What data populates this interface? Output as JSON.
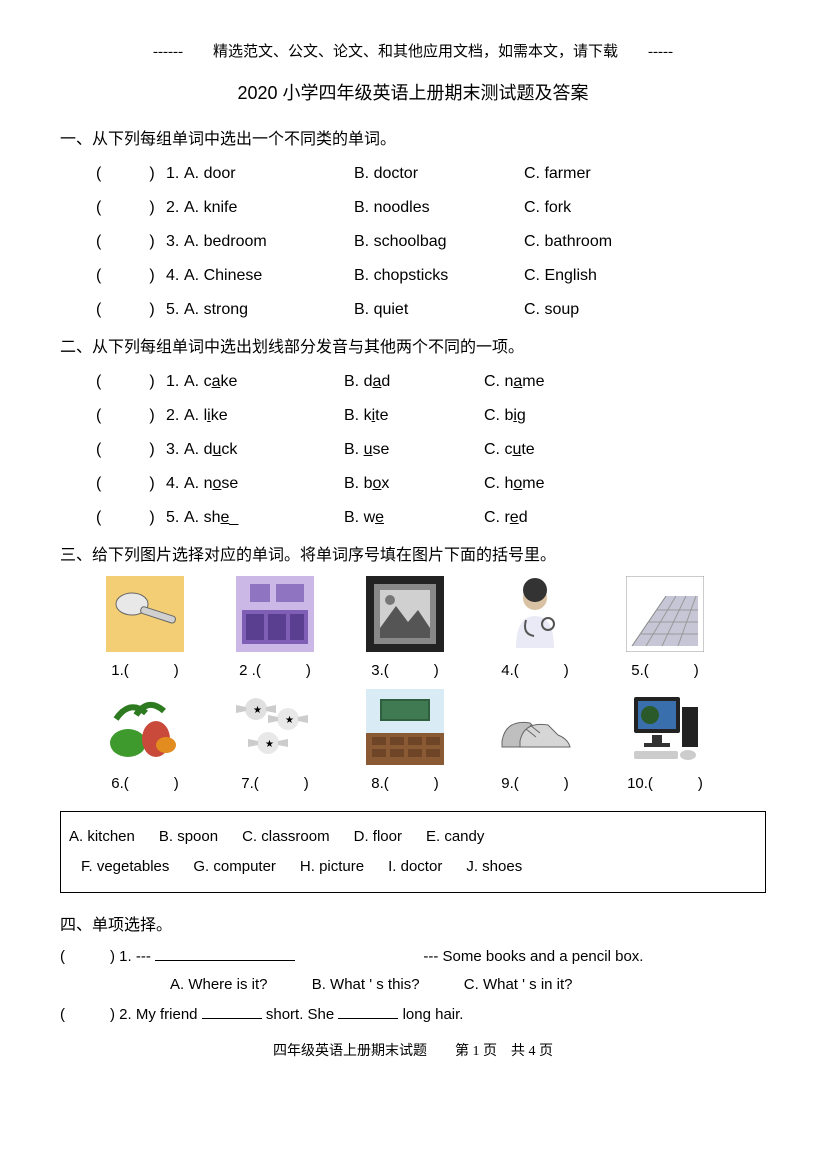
{
  "header": "------　　精选范文、公文、论文、和其他应用文档，如需本文，请下载　　-----",
  "title": "2020 小学四年级英语上册期末测试题及答案",
  "footer": "四年级英语上册期末试题　　第 1 页　共 4 页",
  "s1": {
    "head": "一、从下列每组单词中选出一个不同类的单词。",
    "items": [
      {
        "n": "1.",
        "a": "A. door",
        "b": "B. doctor",
        "c": "C. farmer"
      },
      {
        "n": "2.",
        "a": "A. knife",
        "b": "B. noodles",
        "c": "C. fork"
      },
      {
        "n": "3.",
        "a": "A. bedroom",
        "b": "B. schoolbag",
        "c": "C. bathroom"
      },
      {
        "n": "4.",
        "a": "A. Chinese",
        "b": "B. chopsticks",
        "c": "C. English"
      },
      {
        "n": "5.",
        "a": "A. strong",
        "b": "B. quiet",
        "c": "C. soup"
      }
    ]
  },
  "s2": {
    "head": "二、从下列每组单词中选出划线部分发音与其他两个不同的一项。"
  },
  "s3": {
    "head": "三、给下列图片选择对应的单词。将单词序号填在图片下面的括号里。",
    "row1": [
      {
        "n": "1.",
        "svg": "spoon",
        "bg": "#f3ce74"
      },
      {
        "n": "2 .",
        "svg": "kitchen",
        "bg": "#b9a3d6"
      },
      {
        "n": "3.",
        "svg": "picture",
        "bg": "#555"
      },
      {
        "n": "4.",
        "svg": "doctor",
        "bg": "#fff"
      },
      {
        "n": "5.",
        "svg": "floor",
        "bg": "#b8b8c8"
      }
    ],
    "row2": [
      {
        "n": "6.",
        "svg": "veg",
        "bg": "#3a8a2a"
      },
      {
        "n": "7.",
        "svg": "candy",
        "bg": "#ddd"
      },
      {
        "n": "8.",
        "svg": "classroom",
        "bg": "#6fa2c7"
      },
      {
        "n": "9.",
        "svg": "shoes",
        "bg": "#999"
      },
      {
        "n": "10.",
        "svg": "computer",
        "bg": "#333"
      }
    ],
    "box": [
      "A. kitchen",
      "B. spoon",
      "C. classroom",
      "D. floor",
      "E. candy",
      "F. vegetables",
      "G. computer",
      "H. picture",
      "I. doctor",
      "J. shoes"
    ]
  },
  "s4": {
    "head": "四、单项选择。",
    "q1_right": "--- Some books and a pencil box.",
    "q1_opts": {
      "a": "A. Where is it?",
      "b": "B. What ' s this?",
      "c": "C. What ' s in it?"
    },
    "q2_pre": ") 2. My friend ",
    "q2_mid": " short. She ",
    "q2_end": " long hair."
  },
  "paren": "(　　　)"
}
